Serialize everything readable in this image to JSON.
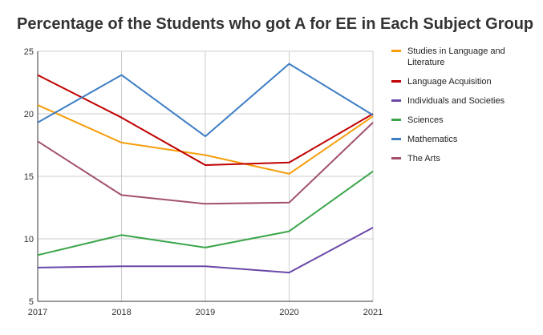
{
  "chart_data": {
    "type": "line",
    "title": "Percentage of the Students who got A for EE in Each Subject Group",
    "xlabel": "",
    "ylabel": "",
    "x": [
      "2017",
      "2018",
      "2019",
      "2020",
      "2021"
    ],
    "ylim": [
      5,
      25
    ],
    "yticks": [
      "5",
      "10",
      "15",
      "20",
      "25"
    ],
    "grid": true,
    "legend_position": "right",
    "series": [
      {
        "name": "Studies in Language and Literature",
        "color": "#f59e0b",
        "values": [
          20.7,
          17.7,
          16.7,
          15.2,
          19.8
        ]
      },
      {
        "name": "Language Acquisition",
        "color": "#c00000",
        "values": [
          23.1,
          19.7,
          15.9,
          16.1,
          20.0
        ]
      },
      {
        "name": "Individuals and Societies",
        "color": "#6a48a8",
        "values": [
          7.7,
          7.8,
          7.8,
          7.3,
          10.9
        ]
      },
      {
        "name": "Sciences",
        "color": "#3aa549",
        "values": [
          8.7,
          10.3,
          9.3,
          10.6,
          15.4
        ]
      },
      {
        "name": "Mathematics",
        "color": "#3d7ec4",
        "values": [
          19.3,
          23.1,
          18.2,
          24.0,
          19.9
        ]
      },
      {
        "name": "The Arts",
        "color": "#a2506e",
        "values": [
          17.8,
          13.5,
          12.8,
          12.9,
          19.3
        ]
      }
    ]
  }
}
